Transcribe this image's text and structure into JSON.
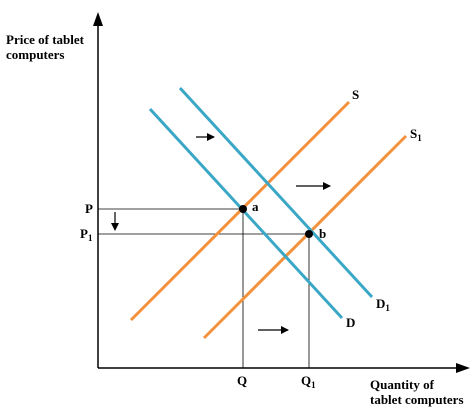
{
  "diagram": {
    "y_axis_label": [
      "Price of tablet",
      "computers"
    ],
    "x_axis_label": [
      "Quantity of",
      "tablet computers"
    ],
    "curves": {
      "supply": "S",
      "supply_shifted": "S",
      "supply_shifted_sub": "1",
      "demand": "D",
      "demand_shifted": "D",
      "demand_shifted_sub": "1"
    },
    "points": {
      "a": "a",
      "b": "b"
    },
    "price_ticks": {
      "p": "P",
      "p1": "P",
      "p1_sub": "1"
    },
    "quantity_ticks": {
      "q": "Q",
      "q1": "Q",
      "q1_sub": "1"
    },
    "colors": {
      "supply": "#f4913c",
      "demand": "#3aa7c6",
      "axis": "#000000",
      "guide": "#000000"
    }
  }
}
